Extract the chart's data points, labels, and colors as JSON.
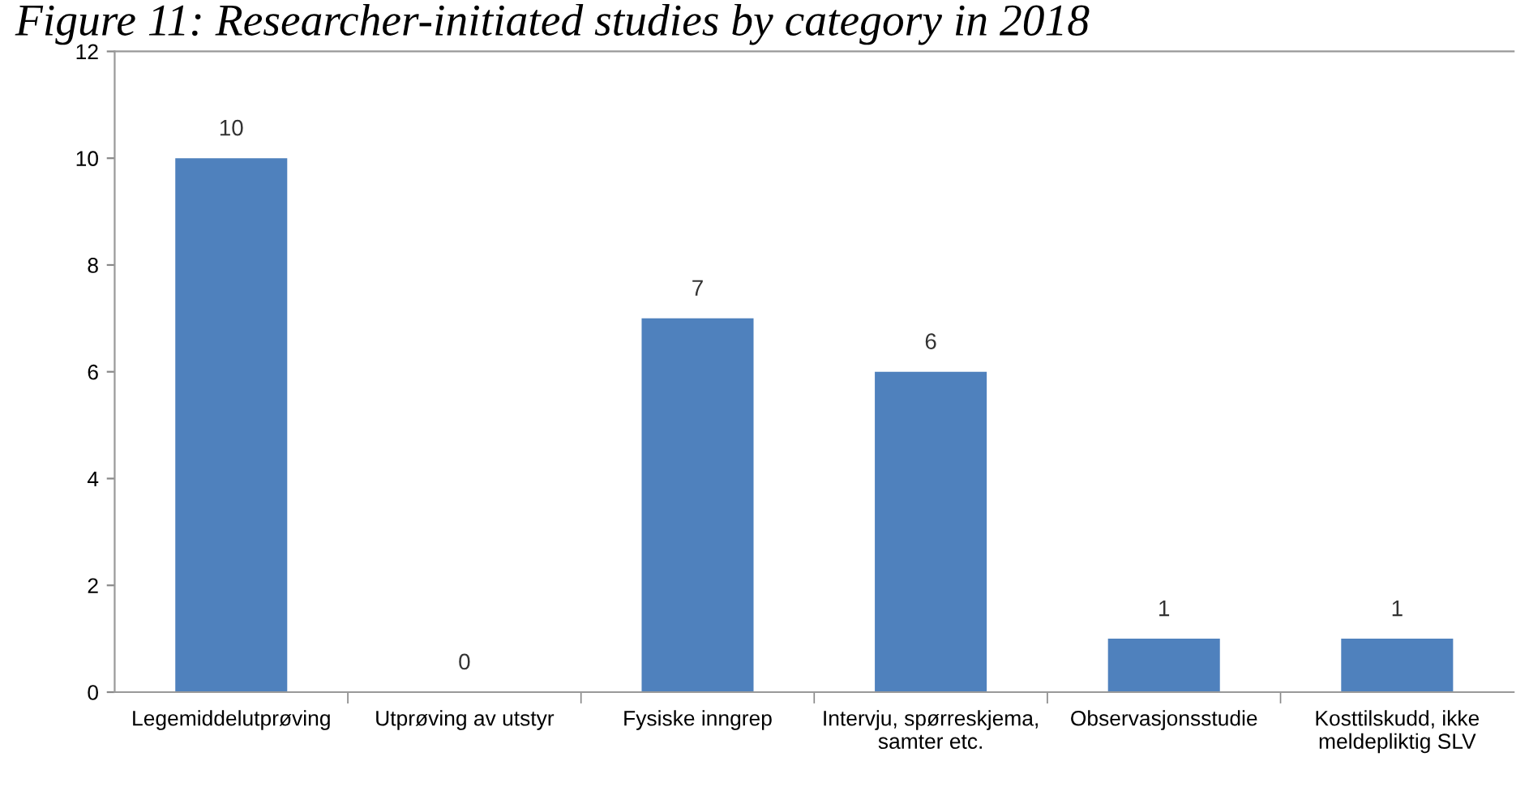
{
  "chart_data": {
    "type": "bar",
    "title": "Figure 11: Researcher-initiated studies by category in 2018",
    "categories": [
      "Legemiddelutprøving",
      "Utprøving av utstyr",
      "Fysiske inngrep",
      "Intervju, spørreskjema,\nsamter etc.",
      "Observasjonsstudie",
      "Kosttilskudd, ikke\nmeldepliktig SLV"
    ],
    "values": [
      10,
      0,
      7,
      6,
      1,
      1
    ],
    "color": "#4f81bd",
    "ylim": [
      0,
      12
    ],
    "yticks": [
      0,
      2,
      4,
      6,
      8,
      10,
      12
    ],
    "data_labels": true,
    "grid": false,
    "legend": false
  }
}
